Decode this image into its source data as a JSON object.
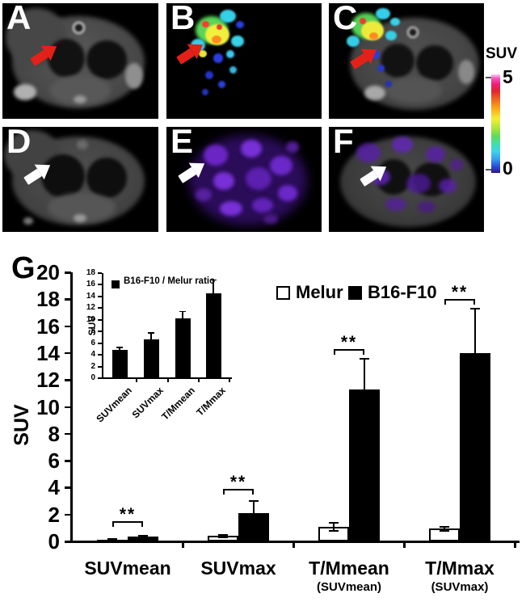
{
  "panels": [
    {
      "label": "A"
    },
    {
      "label": "B"
    },
    {
      "label": "C"
    },
    {
      "label": "D"
    },
    {
      "label": "E"
    },
    {
      "label": "F"
    }
  ],
  "arrow_colors": {
    "top_row": "#e32119",
    "bottom_row": "#ffffff"
  },
  "colorbar": {
    "title": "SUV",
    "top_tick_label": "5",
    "bottom_tick_label": "0"
  },
  "panel_g": {
    "label": "G"
  },
  "chart_data": [
    {
      "type": "bar",
      "ylabel": "SUV",
      "ylim": [
        0,
        20
      ],
      "ytick_step": 2,
      "categories": [
        "SUVmean",
        "SUVmax",
        "T/Mmean",
        "T/Mmax"
      ],
      "category_sublabels": [
        "",
        "",
        "(SUVmean)",
        "(SUVmax)"
      ],
      "series": [
        {
          "name": "Melur",
          "fill": "#ffffff",
          "values": [
            0.1,
            0.4,
            1.1,
            0.95
          ],
          "errors": [
            0.05,
            0.1,
            0.3,
            0.15
          ]
        },
        {
          "name": "B16-F10",
          "fill": "#000000",
          "values": [
            0.35,
            2.1,
            11.3,
            14.0
          ],
          "errors": [
            0.1,
            0.9,
            2.3,
            3.3
          ]
        }
      ],
      "significance": [
        {
          "label": "**",
          "y": 1.5
        },
        {
          "label": "**",
          "y": 3.9
        },
        {
          "label": "**",
          "y": 14.3
        },
        {
          "label": "**",
          "y": 18.0
        }
      ],
      "legend_position": "top-right",
      "grid": false
    },
    {
      "type": "bar",
      "legend": "B16-F10 / Melur ratio",
      "ylabel": "SUV",
      "ylim": [
        0,
        18
      ],
      "ytick_step": 2,
      "categories": [
        "SUVmean",
        "SUVmax",
        "T/Mmean",
        "T/Mmax"
      ],
      "values": [
        4.9,
        6.6,
        10.2,
        14.5
      ],
      "errors": [
        0.35,
        1.15,
        1.2,
        2.3
      ],
      "grid": false
    }
  ]
}
